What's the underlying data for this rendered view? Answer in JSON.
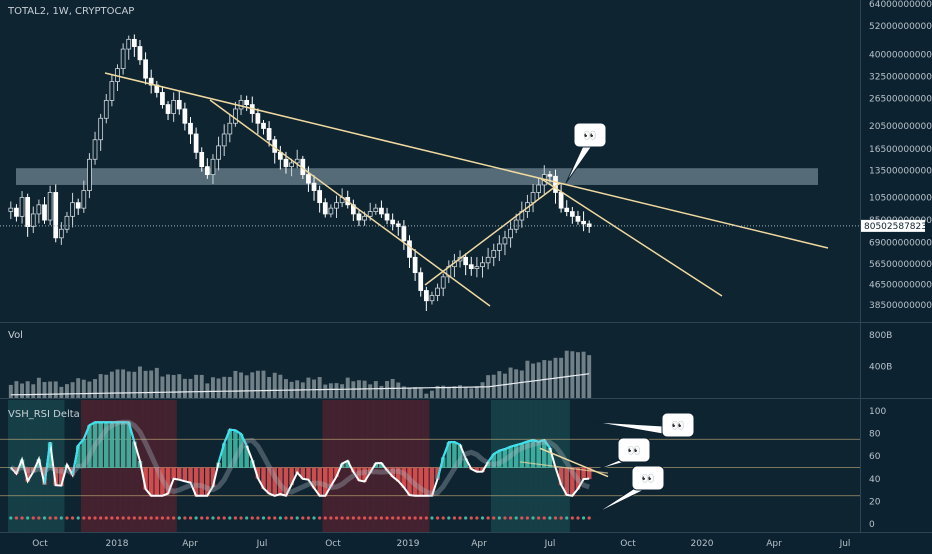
{
  "header": {
    "symbol_title": "TOTAL2, 1W, CRYPTOCAP"
  },
  "price_axis": {
    "ticks": [
      "640000000000",
      "520000000000",
      "400000000000",
      "325000000000",
      "265000000000",
      "205000000000",
      "165000000000",
      "135000000000",
      "105000000000",
      "85000000000",
      "69000000000",
      "56500000000",
      "46500000000",
      "38500000000"
    ],
    "current_value": "80502587823"
  },
  "volume_pane": {
    "title": "Vol",
    "ticks": [
      "800B",
      "400B"
    ]
  },
  "rsi_pane": {
    "title": "VSH_RSI Delta",
    "ticks": [
      "100",
      "80",
      "60",
      "40",
      "20",
      "0"
    ]
  },
  "time_axis": {
    "labels": [
      "Oct",
      "2018",
      "Apr",
      "Jul",
      "Oct",
      "2019",
      "Apr",
      "Jul",
      "Oct",
      "2020",
      "Apr",
      "Jul"
    ]
  },
  "callouts": [
    {
      "name": "price-callout",
      "text": "👀"
    },
    {
      "name": "rsi-callout-top",
      "text": "👀"
    },
    {
      "name": "rsi-callout-mid",
      "text": "👀"
    },
    {
      "name": "rsi-callout-bottom",
      "text": "👀"
    }
  ],
  "colors": {
    "background": "#0d2230",
    "bull": "#d7dde2",
    "bear": "#ffffff",
    "trendline": "#f0d9a0",
    "resistance_zone": "#8fa6b2",
    "rsi_line_white": "#ffffff",
    "rsi_line_cyan": "#35e2f0",
    "hist_red": "#e05252",
    "hist_green": "#3fb8a6",
    "bg_red": "#5a2230",
    "bg_teal": "#1a4a50"
  },
  "chart_data": [
    {
      "type": "candlestick",
      "pane": "price",
      "title": "TOTAL2, 1W, CRYPTOCAP",
      "scale": "log",
      "ylim": [
        36000000000,
        640000000000
      ],
      "last_value": 80502587823,
      "weekly_close_approx": [
        95,
        88,
        105,
        80,
        90,
        98,
        85,
        110,
        72,
        78,
        88,
        100,
        95,
        112,
        150,
        180,
        220,
        260,
        310,
        350,
        420,
        460,
        430,
        380,
        320,
        300,
        280,
        250,
        230,
        260,
        240,
        210,
        190,
        160,
        140,
        130,
        150,
        170,
        190,
        210,
        240,
        260,
        250,
        230,
        210,
        200,
        180,
        160,
        150,
        140,
        145,
        150,
        130,
        120,
        112,
        100,
        90,
        95,
        100,
        105,
        98,
        90,
        85,
        88,
        92,
        95,
        90,
        85,
        82,
        80,
        70,
        60,
        52,
        44,
        40,
        42,
        45,
        50,
        55,
        58,
        60,
        56,
        54,
        55,
        57,
        60,
        64,
        68,
        72,
        78,
        85,
        92,
        100,
        110,
        118,
        130,
        128,
        110,
        95,
        92,
        88,
        84,
        82,
        80
      ]
    },
    {
      "type": "bar",
      "pane": "volume",
      "title": "Vol",
      "unit": "B",
      "ylim": [
        0,
        900
      ]
    },
    {
      "type": "line",
      "pane": "rsi",
      "title": "VSH_RSI Delta",
      "ylim": [
        0,
        100
      ],
      "levels": [
        75,
        50,
        25
      ]
    }
  ]
}
